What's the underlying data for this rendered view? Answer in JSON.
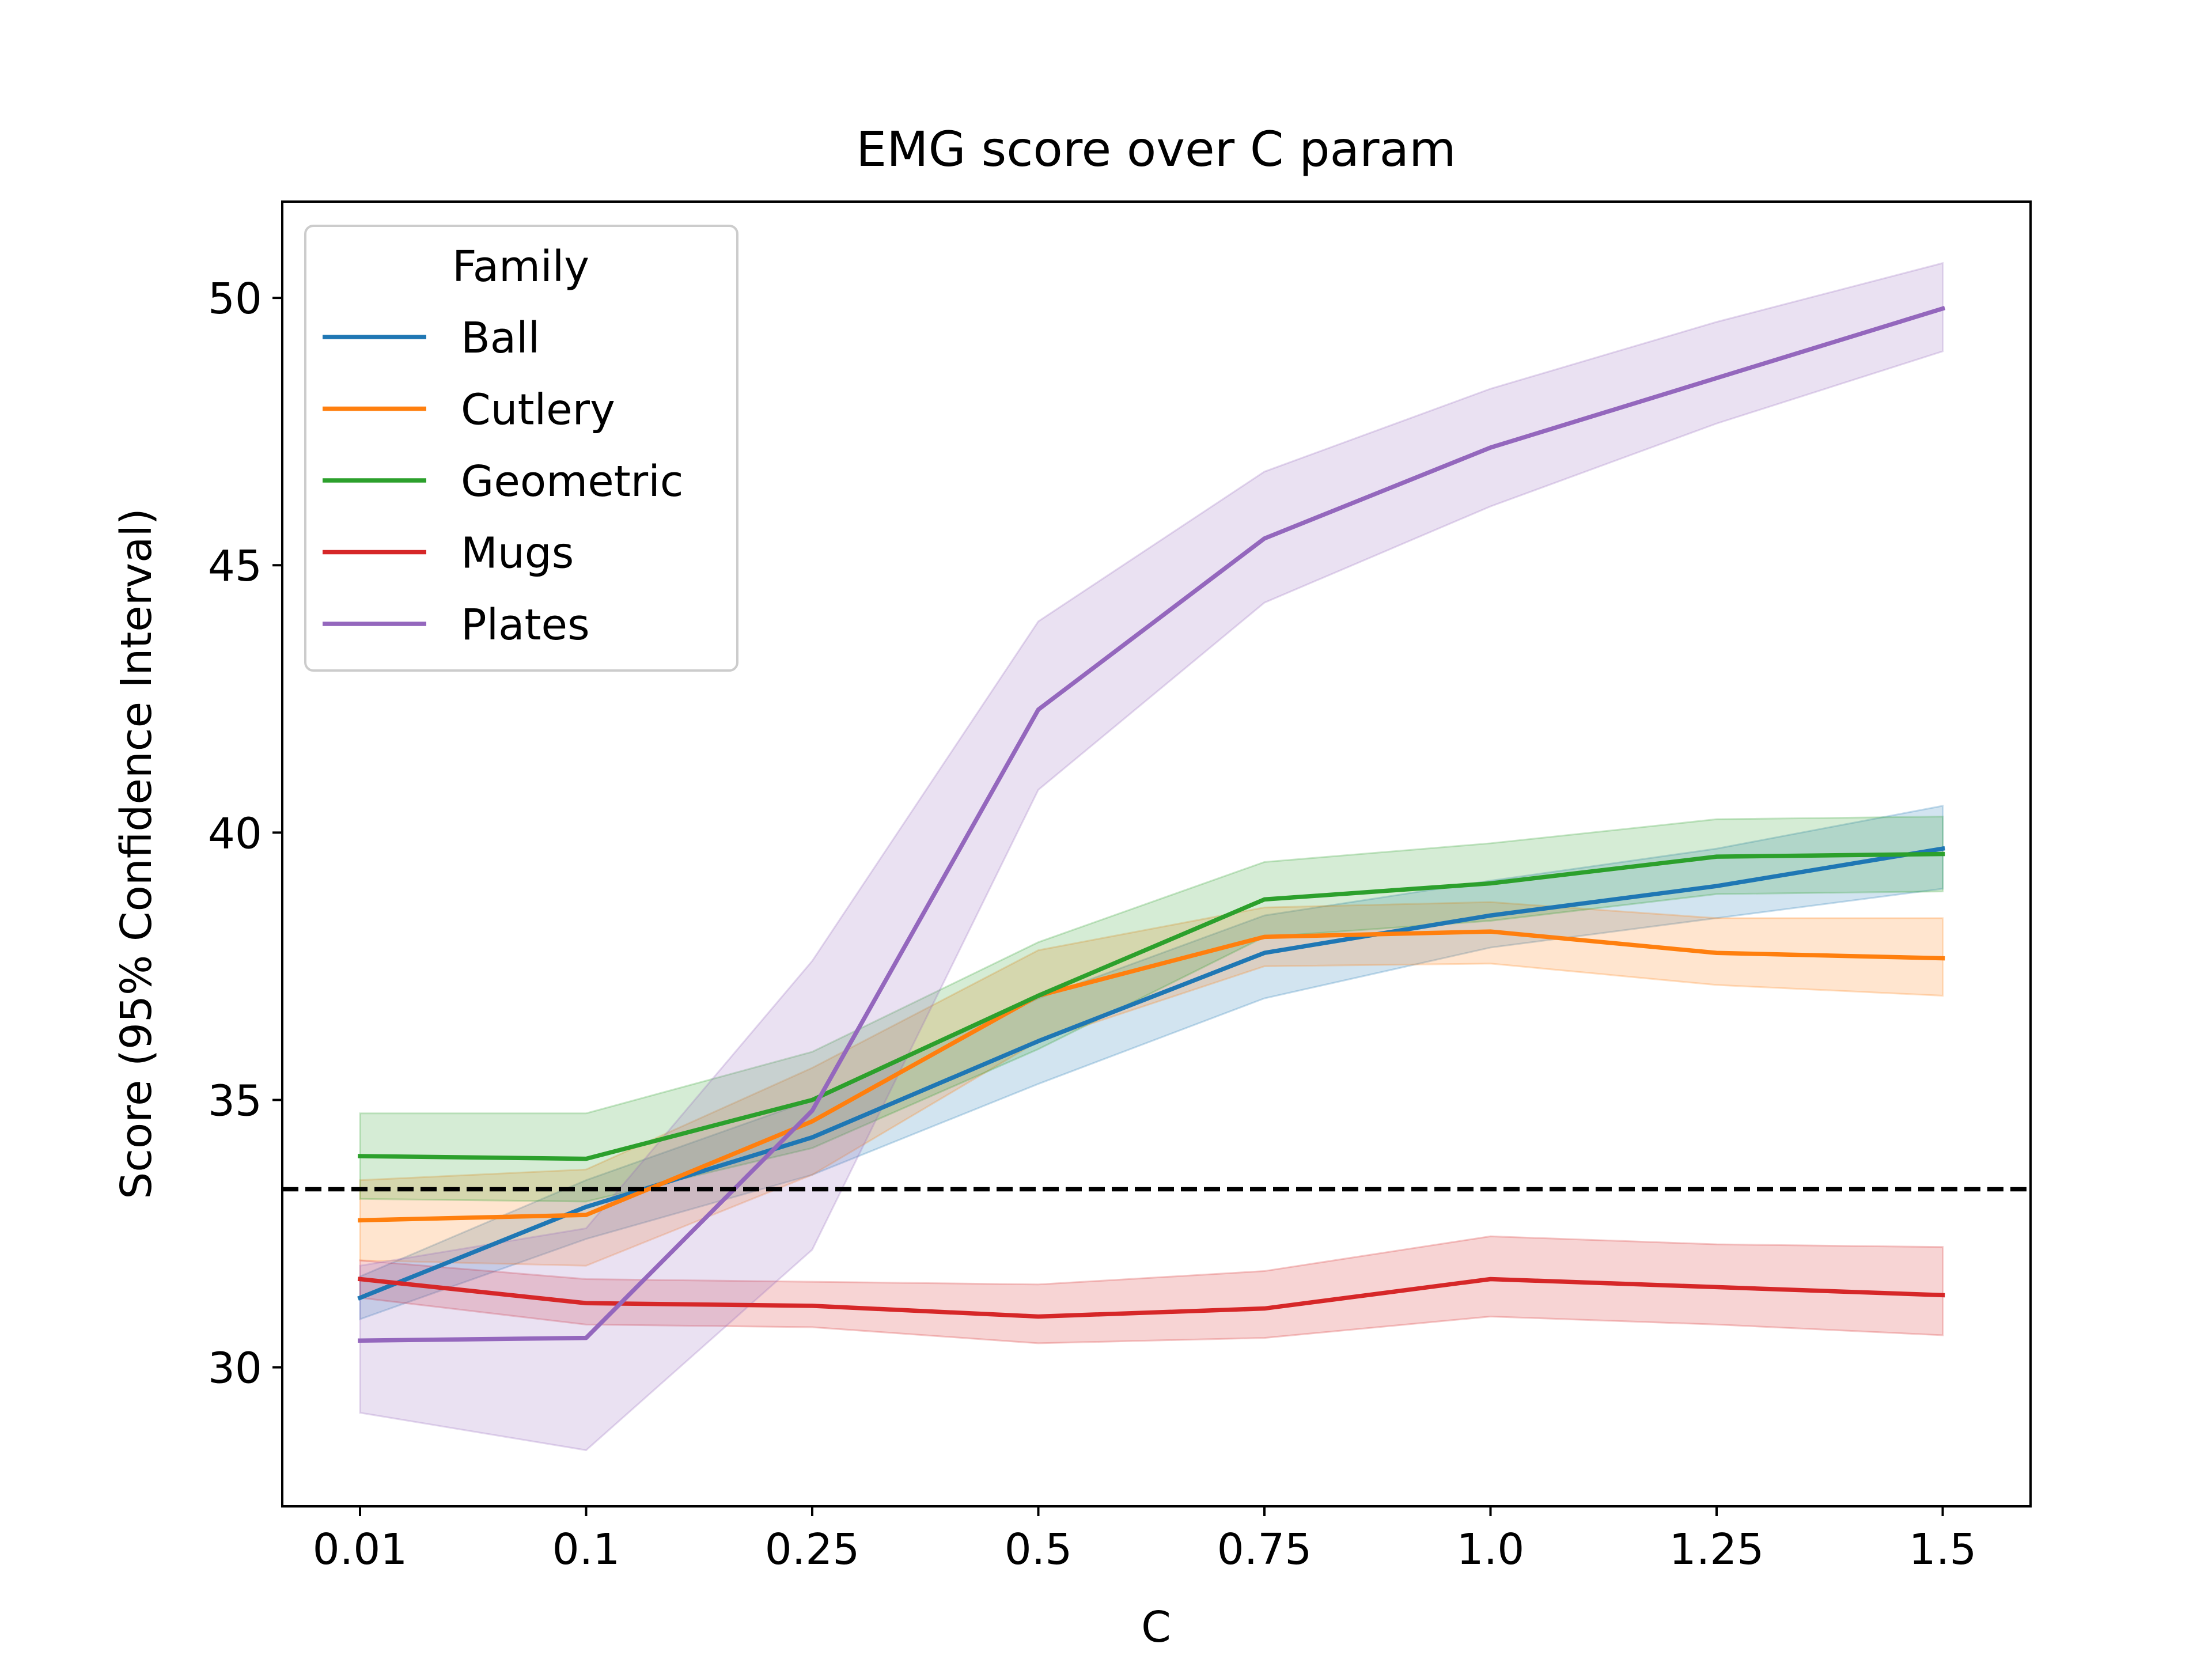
{
  "chart_data": {
    "type": "line",
    "title": "EMG score over C param",
    "xlabel": "C",
    "ylabel": "Score (95% Confidence Interval)",
    "x_scale": "categorical",
    "categories": [
      "0.01",
      "0.1",
      "0.25",
      "0.5",
      "0.75",
      "1.0",
      "1.25",
      "1.5"
    ],
    "ylim": [
      27.4,
      51.8
    ],
    "yticks": [
      30,
      35,
      40,
      45,
      50
    ],
    "grid": false,
    "legend": {
      "title": "Family",
      "position": "upper-left"
    },
    "reference_line": {
      "y": 33.33,
      "style": "dashed",
      "color": "#000000"
    },
    "series": [
      {
        "name": "Ball",
        "color": "#1f77b4",
        "values": [
          31.3,
          33.0,
          34.3,
          36.1,
          37.75,
          38.45,
          39.0,
          39.7
        ],
        "lower": [
          30.9,
          32.4,
          33.6,
          35.3,
          36.9,
          37.85,
          38.4,
          38.95
        ],
        "upper": [
          31.7,
          33.5,
          35.0,
          36.9,
          38.45,
          39.1,
          39.7,
          40.5
        ]
      },
      {
        "name": "Cutlery",
        "color": "#ff7f0e",
        "values": [
          32.75,
          32.85,
          34.6,
          36.95,
          38.05,
          38.15,
          37.75,
          37.65
        ],
        "lower": [
          32.0,
          31.9,
          33.6,
          36.1,
          37.5,
          37.55,
          37.15,
          36.95
        ],
        "upper": [
          33.5,
          33.7,
          35.6,
          37.8,
          38.6,
          38.7,
          38.4,
          38.4
        ]
      },
      {
        "name": "Geometric",
        "color": "#2ca02c",
        "values": [
          33.95,
          33.9,
          35.0,
          36.95,
          38.75,
          39.05,
          39.55,
          39.6
        ],
        "lower": [
          33.15,
          33.1,
          34.1,
          35.95,
          38.05,
          38.35,
          38.85,
          38.9
        ],
        "upper": [
          34.75,
          34.75,
          35.9,
          37.95,
          39.45,
          39.8,
          40.25,
          40.3
        ]
      },
      {
        "name": "Mugs",
        "color": "#d62728",
        "values": [
          31.65,
          31.2,
          31.15,
          30.95,
          31.1,
          31.65,
          31.5,
          31.35
        ],
        "lower": [
          31.3,
          30.8,
          30.75,
          30.45,
          30.55,
          30.95,
          30.8,
          30.6
        ],
        "upper": [
          32.0,
          31.65,
          31.6,
          31.55,
          31.8,
          32.45,
          32.3,
          32.25
        ]
      },
      {
        "name": "Plates",
        "color": "#9467bd",
        "values": [
          30.5,
          30.55,
          34.8,
          42.3,
          45.5,
          47.2,
          48.5,
          49.8
        ],
        "lower": [
          29.15,
          28.45,
          32.2,
          40.8,
          44.3,
          46.1,
          47.65,
          49.0
        ],
        "upper": [
          31.9,
          32.6,
          37.6,
          43.95,
          46.75,
          48.3,
          49.55,
          50.65
        ]
      }
    ]
  }
}
